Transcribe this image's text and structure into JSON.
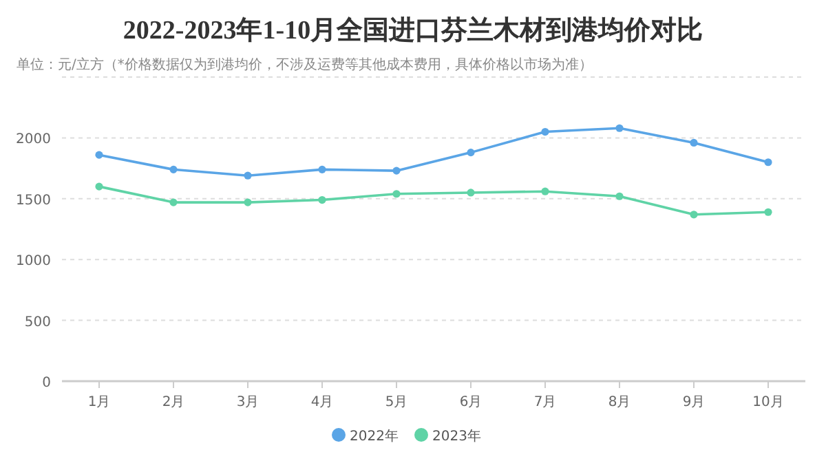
{
  "chart_data": {
    "type": "line",
    "title": "2022-2023年1-10月全国进口芬兰木材到港均价对比",
    "subtitle": "单位：元/立方（*价格数据仅为到港均价，不涉及运费等其他成本费用，具体价格以市场为准）",
    "categories": [
      "1月",
      "2月",
      "3月",
      "4月",
      "5月",
      "6月",
      "7月",
      "8月",
      "9月",
      "10月"
    ],
    "series": [
      {
        "name": "2022年",
        "color": "#5aa5e6",
        "values": [
          1860,
          1740,
          1690,
          1740,
          1730,
          1880,
          2050,
          2080,
          1960,
          1800
        ]
      },
      {
        "name": "2023年",
        "color": "#5fd3a6",
        "values": [
          1600,
          1470,
          1470,
          1490,
          1540,
          1550,
          1560,
          1520,
          1370,
          1390
        ]
      }
    ],
    "ylim": [
      0,
      2500
    ],
    "yticks": [
      0,
      500,
      1000,
      1500,
      2000,
      {
        "value": 2500,
        "label": null
      }
    ],
    "grid": "y",
    "legend": "bottom",
    "marker": "circle",
    "line_style": "solid"
  }
}
